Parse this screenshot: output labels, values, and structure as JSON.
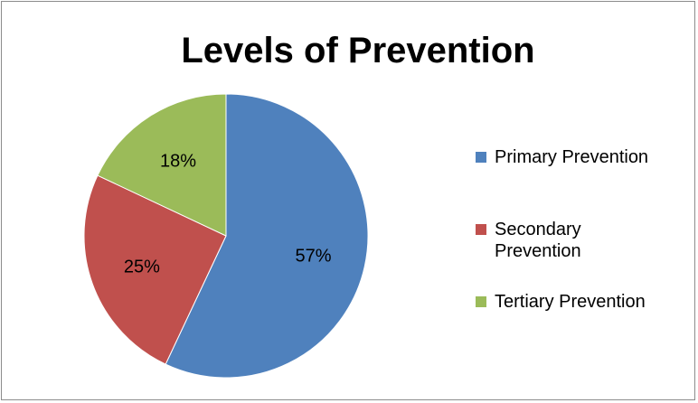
{
  "chart_data": {
    "type": "pie",
    "title": "Levels of Prevention",
    "slices": [
      {
        "name": "Primary Prevention",
        "value": 57,
        "label": "57%",
        "color": "#4f81bd"
      },
      {
        "name": "Secondary Prevention",
        "value": 25,
        "label": "25%",
        "color": "#c0504d"
      },
      {
        "name": "Tertiary Prevention",
        "value": 18,
        "label": "18%",
        "color": "#9bbb59"
      }
    ],
    "legend_position": "right",
    "start_angle": "12 o'clock, clockwise"
  }
}
